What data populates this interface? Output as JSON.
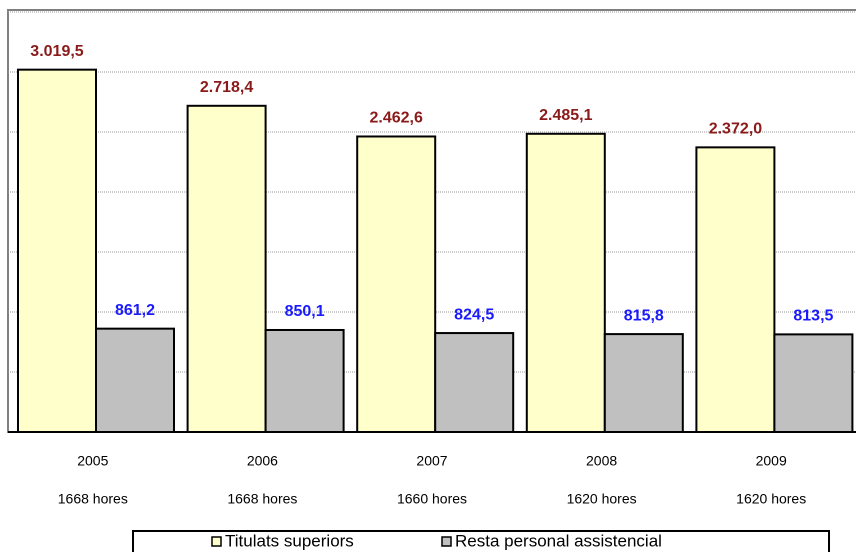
{
  "chart_data": {
    "type": "bar",
    "categories": [
      "2005",
      "2006",
      "2007",
      "2008",
      "2009"
    ],
    "category_notes": [
      "1668 hores",
      "1668 hores",
      "1660 hores",
      "1620 hores",
      "1620 hores"
    ],
    "series": [
      {
        "name": "Titulats superiors",
        "color": "#ffffcc",
        "label_color": "#8b1a1a",
        "values": [
          3019.5,
          2718.4,
          2462.6,
          2485.1,
          2372.0
        ],
        "value_labels": [
          "3.019,5",
          "2.718,4",
          "2.462,6",
          "2.485,1",
          "2.372,0"
        ]
      },
      {
        "name": "Resta personal assistencial",
        "color": "#c0c0c0",
        "label_color": "#1a1aff",
        "values": [
          861.2,
          850.1,
          824.5,
          815.8,
          813.5
        ],
        "value_labels": [
          "861,2",
          "850,1",
          "824,5",
          "815,8",
          "813,5"
        ]
      }
    ],
    "ylim": [
      0,
      3500
    ],
    "yticks": [
      0,
      500,
      1000,
      1500,
      2000,
      2500,
      3000,
      3500
    ],
    "grid": true,
    "legend": "bottom"
  }
}
